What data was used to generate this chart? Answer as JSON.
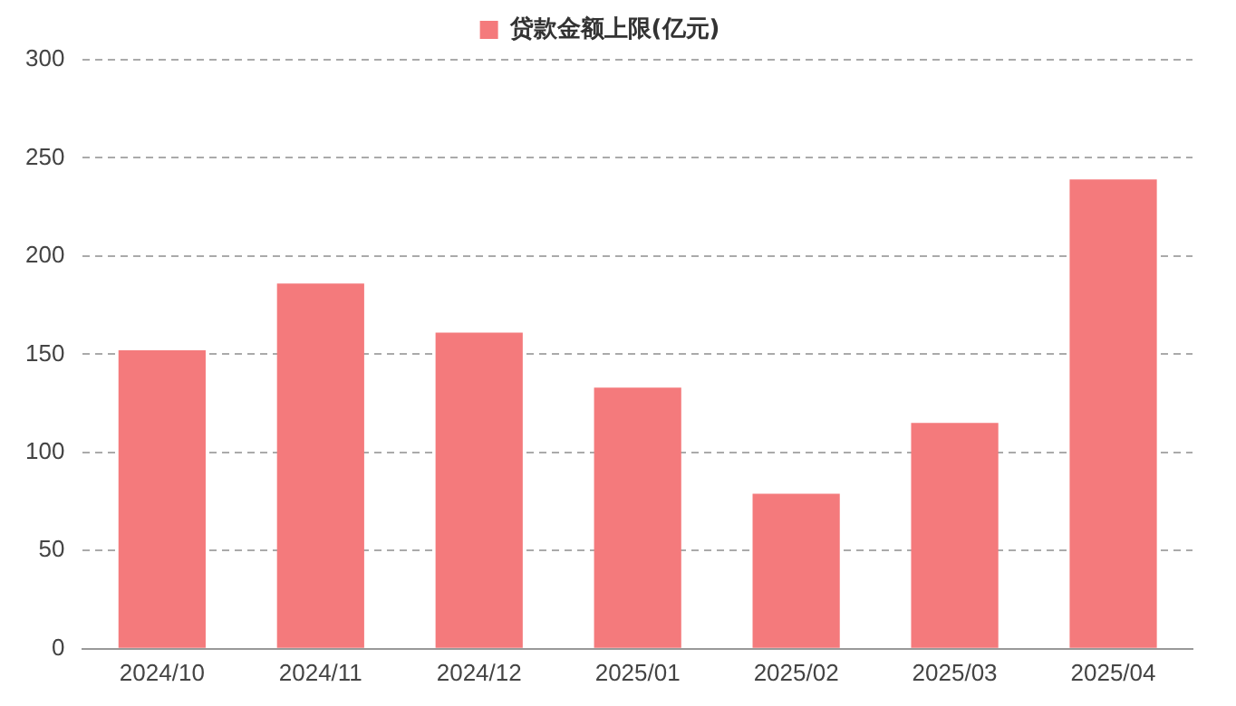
{
  "chart_data": {
    "type": "bar",
    "categories": [
      "2024/10",
      "2024/11",
      "2024/12",
      "2025/01",
      "2025/02",
      "2025/03",
      "2025/04"
    ],
    "series": [
      {
        "name": "贷款金额上限(亿元)",
        "color": "#f47a7c",
        "values": [
          152,
          186,
          161,
          133,
          79,
          115,
          239
        ]
      }
    ],
    "ylim": [
      0,
      300
    ],
    "yticks": [
      0,
      50,
      100,
      150,
      200,
      250,
      300
    ],
    "grid": "y",
    "legend": "top"
  }
}
